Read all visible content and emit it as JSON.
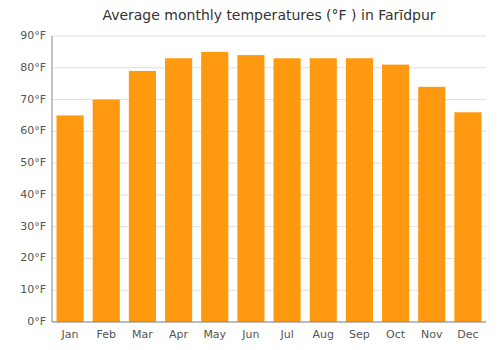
{
  "chart_data": {
    "type": "bar",
    "title": "Average monthly temperatures (°F ) in Farīdpur",
    "categories": [
      "Jan",
      "Feb",
      "Mar",
      "Apr",
      "May",
      "Jun",
      "Jul",
      "Aug",
      "Sep",
      "Oct",
      "Nov",
      "Dec"
    ],
    "values": [
      65,
      70,
      79,
      83,
      85,
      84,
      83,
      83,
      83,
      81,
      74,
      66
    ],
    "color": "#ff9910",
    "ylim": [
      0,
      90
    ],
    "yticks": [
      {
        "value": 0,
        "label": "0°F"
      },
      {
        "value": 10,
        "label": "10°F"
      },
      {
        "value": 20,
        "label": "20°F"
      },
      {
        "value": 30,
        "label": "30°F"
      },
      {
        "value": 40,
        "label": "40°F"
      },
      {
        "value": 50,
        "label": "50°F"
      },
      {
        "value": 60,
        "label": "60°F"
      },
      {
        "value": 70,
        "label": "70°F"
      },
      {
        "value": 80,
        "label": "80°F"
      },
      {
        "value": 90,
        "label": "90°F"
      }
    ],
    "grid": true
  }
}
